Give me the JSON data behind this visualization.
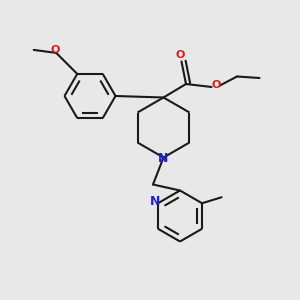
{
  "bg_color": "#e8e8e8",
  "bond_color": "#1a1a1a",
  "nitrogen_color": "#2020cc",
  "oxygen_color": "#cc2020",
  "line_width": 1.5,
  "fig_size": [
    3.0,
    3.0
  ],
  "dpi": 100,
  "xlim": [
    0,
    10
  ],
  "ylim": [
    0,
    10
  ]
}
